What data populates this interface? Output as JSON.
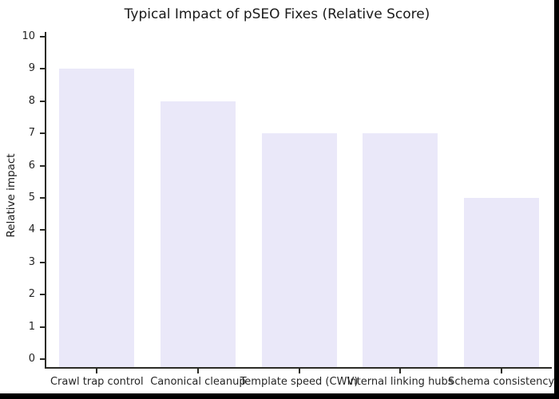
{
  "chart_data": {
    "type": "bar",
    "title": "Typical Impact of pSEO Fixes (Relative Score)",
    "ylabel": "Relative impact",
    "xlabel": "",
    "categories": [
      "Crawl trap control",
      "Canonical cleanup",
      "Template speed (CWV)",
      "Internal linking hubs",
      "Schema consistency"
    ],
    "values": [
      9,
      8,
      7,
      7,
      5
    ],
    "ylim": [
      0,
      10
    ],
    "yticks": [
      0,
      1,
      2,
      3,
      4,
      5,
      6,
      7,
      8,
      9,
      10
    ],
    "grid": false,
    "legend": "none",
    "bar_color": "#eae8f9",
    "axis_color": "#2b2b26",
    "text_color": "#262626"
  }
}
